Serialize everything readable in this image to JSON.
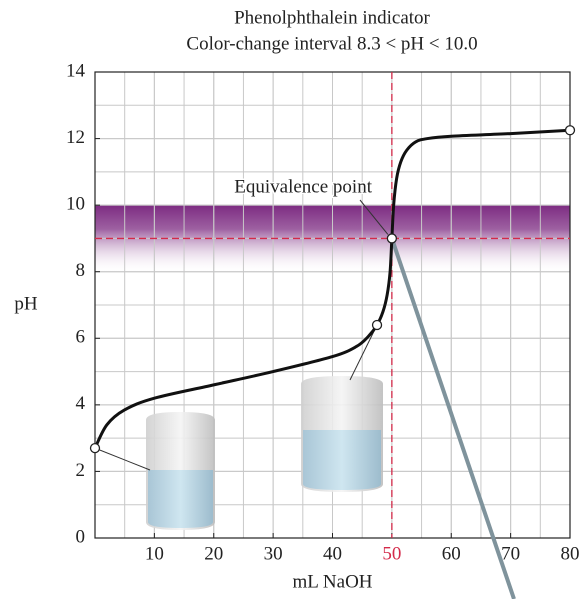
{
  "chart_data": {
    "type": "line",
    "title": "Phenolphthalein indicator",
    "subtitle": "Color-change interval 8.3 < pH < 10.0",
    "x_label": "mL NaOH",
    "y_label": "pH",
    "xlim": [
      0,
      80
    ],
    "ylim": [
      0,
      14
    ],
    "xticks": [
      10,
      20,
      30,
      40,
      50,
      60,
      70,
      80
    ],
    "yticks": [
      0,
      2,
      4,
      6,
      8,
      10,
      12,
      14
    ],
    "grid": true,
    "color": "#111111",
    "curve": {
      "x": [
        0,
        2,
        5,
        10,
        20,
        30,
        40,
        44,
        46,
        47.5,
        48.5,
        49.2,
        49.7,
        50,
        50.3,
        50.8,
        51.5,
        52.5,
        54,
        56,
        60,
        70,
        80
      ],
      "values": [
        2.7,
        3.4,
        3.85,
        4.2,
        4.6,
        5.0,
        5.45,
        5.75,
        6.05,
        6.4,
        6.8,
        7.3,
        8.0,
        9.0,
        10.0,
        10.8,
        11.3,
        11.65,
        11.9,
        12.0,
        12.07,
        12.15,
        12.25
      ]
    },
    "points": {
      "x": [
        0,
        47.5,
        50,
        80
      ],
      "values": [
        2.7,
        6.4,
        9.0,
        12.25
      ]
    },
    "indicator_range": [
      8.3,
      10.0
    ],
    "indicator_color": "#7d2c82",
    "equivalence": {
      "x": 50,
      "y": 9.0,
      "label": "Equivalence point",
      "color": "#d42a4a"
    }
  }
}
